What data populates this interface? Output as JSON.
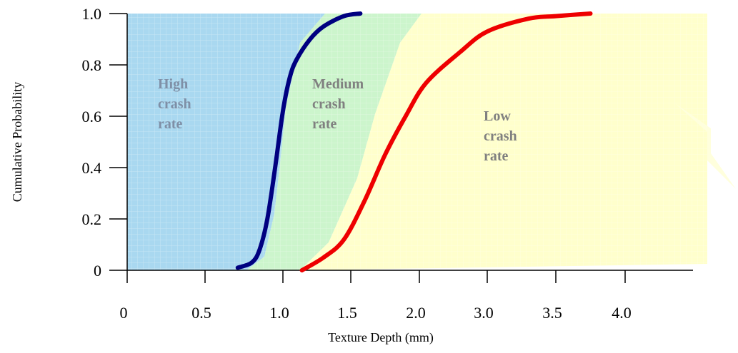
{
  "chart_data": {
    "type": "line",
    "xlabel": "Texture Depth (mm)",
    "ylabel": "Cumulative  Probability",
    "x_tick_labels": [
      "0",
      "0.5",
      "1.0",
      "1.5",
      "2.0",
      "3.0",
      "3.5",
      "4.0"
    ],
    "y_tick_labels": [
      "0",
      "0.2",
      "0.4",
      "0.6",
      "0.8",
      "1.0"
    ],
    "ylim": [
      0,
      1.0
    ],
    "grid": false,
    "regions": [
      {
        "label_lines": [
          "High",
          "crash",
          "rate"
        ],
        "color": "#a9d8f0",
        "label_color": "#7f8fa6"
      },
      {
        "label_lines": [
          "Medium",
          "crash",
          "rate"
        ],
        "color": "#ccf5cc",
        "label_color": "#808080"
      },
      {
        "label_lines": [
          "Low",
          "crash",
          "rate"
        ],
        "color": "#ffffcc",
        "label_color": "#808080"
      }
    ],
    "series": [
      {
        "color": "#000080",
        "points": [
          [
            0.71,
            0.01
          ],
          [
            0.8,
            0.03
          ],
          [
            0.85,
            0.08
          ],
          [
            0.9,
            0.2
          ],
          [
            0.95,
            0.4
          ],
          [
            1.0,
            0.62
          ],
          [
            1.05,
            0.75
          ],
          [
            1.1,
            0.82
          ],
          [
            1.2,
            0.9
          ],
          [
            1.3,
            0.95
          ],
          [
            1.45,
            0.99
          ],
          [
            1.57,
            1.0
          ]
        ]
      },
      {
        "color": "#ee0000",
        "points": [
          [
            1.14,
            0.0
          ],
          [
            1.3,
            0.05
          ],
          [
            1.45,
            0.12
          ],
          [
            1.6,
            0.27
          ],
          [
            1.75,
            0.45
          ],
          [
            1.9,
            0.6
          ],
          [
            2.1,
            0.73
          ],
          [
            2.6,
            0.85
          ],
          [
            3.0,
            0.93
          ],
          [
            3.3,
            0.98
          ],
          [
            3.5,
            0.99
          ],
          [
            3.75,
            1.0
          ]
        ]
      }
    ]
  }
}
